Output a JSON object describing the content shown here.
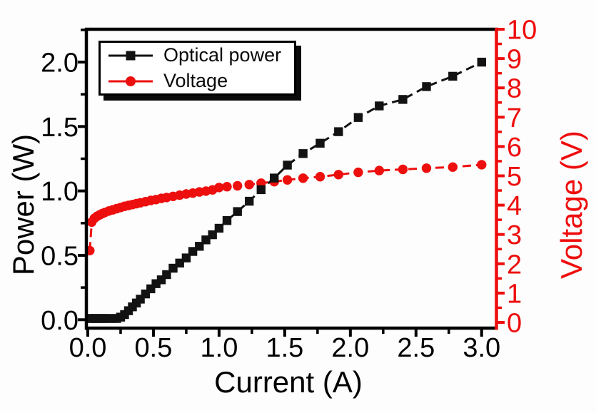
{
  "chart_data": {
    "type": "line",
    "title": "",
    "xlabel": "Current (A)",
    "ylabel_left": "Power (W)",
    "ylabel_right": "Voltage (V)",
    "xlim": [
      0,
      3.11
    ],
    "ylim_left": [
      -0.065,
      2.255
    ],
    "ylim_right": [
      -0.195,
      10.0
    ],
    "grid": false,
    "legend_position": "top-left",
    "axis_colors": {
      "bottom": "#000000",
      "left": "#000000",
      "right": "#ee0d0d",
      "top": "#000000"
    },
    "x_major_ticks": [
      0.0,
      0.5,
      1.0,
      1.5,
      2.0,
      2.5,
      3.0
    ],
    "x_tick_labels": [
      "0.0",
      "0.5",
      "1.0",
      "1.5",
      "2.0",
      "2.5",
      "3.0"
    ],
    "x_minor_ticks": [
      0.25,
      0.75,
      1.25,
      1.75,
      2.25,
      2.75
    ],
    "yleft_major_ticks": [
      0.0,
      0.5,
      1.0,
      1.5,
      2.0
    ],
    "yleft_tick_labels": [
      "0.0",
      "0.5",
      "1.0",
      "1.5",
      "2.0"
    ],
    "yleft_minor_ticks": [
      0.25,
      0.75,
      1.25,
      1.75,
      2.25
    ],
    "yright_major_ticks": [
      0,
      1,
      2,
      3,
      4,
      5,
      6,
      7,
      8,
      9,
      10
    ],
    "yright_tick_labels": [
      "0",
      "1",
      "2",
      "3",
      "4",
      "5",
      "6",
      "7",
      "8",
      "9",
      "10"
    ],
    "yright_minor_ticks": [
      0.5,
      1.5,
      2.5,
      3.5,
      4.5,
      5.5,
      6.5,
      7.5,
      8.5,
      9.5
    ],
    "x": [
      0.015,
      0.03,
      0.05,
      0.07,
      0.09,
      0.11,
      0.13,
      0.16,
      0.19,
      0.22,
      0.25,
      0.28,
      0.31,
      0.34,
      0.37,
      0.4,
      0.44,
      0.48,
      0.52,
      0.56,
      0.6,
      0.65,
      0.7,
      0.75,
      0.8,
      0.85,
      0.9,
      0.95,
      1.0,
      1.06,
      1.14,
      1.23,
      1.32,
      1.42,
      1.52,
      1.64,
      1.77,
      1.91,
      2.06,
      2.22,
      2.4,
      2.58,
      2.78,
      3.0
    ],
    "series": [
      {
        "name": "Optical power",
        "axis": "left",
        "color": "#121212",
        "marker": "square",
        "line_style": "dash",
        "values": [
          0.01,
          0.01,
          0.01,
          0.01,
          0.01,
          0.01,
          0.01,
          0.01,
          0.01,
          0.01,
          0.02,
          0.04,
          0.07,
          0.1,
          0.13,
          0.16,
          0.2,
          0.24,
          0.28,
          0.31,
          0.35,
          0.4,
          0.44,
          0.48,
          0.53,
          0.57,
          0.62,
          0.66,
          0.71,
          0.77,
          0.84,
          0.92,
          1.01,
          1.1,
          1.2,
          1.29,
          1.37,
          1.46,
          1.57,
          1.66,
          1.71,
          1.81,
          1.89,
          2.0
        ]
      },
      {
        "name": "Voltage",
        "axis": "right",
        "color": "#ed0e0e",
        "marker": "circle",
        "line_style": "dash",
        "values": [
          2.45,
          3.42,
          3.55,
          3.62,
          3.67,
          3.71,
          3.75,
          3.8,
          3.84,
          3.88,
          3.92,
          3.96,
          3.99,
          4.02,
          4.05,
          4.08,
          4.12,
          4.16,
          4.19,
          4.23,
          4.26,
          4.3,
          4.34,
          4.38,
          4.41,
          4.45,
          4.48,
          4.52,
          4.6,
          4.63,
          4.66,
          4.7,
          4.75,
          4.8,
          4.86,
          4.92,
          4.97,
          5.04,
          5.12,
          5.18,
          5.22,
          5.26,
          5.3,
          5.38
        ]
      }
    ]
  }
}
